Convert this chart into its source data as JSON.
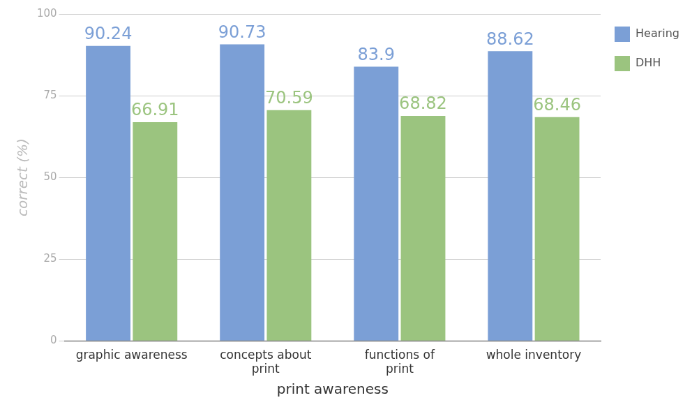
{
  "chart_data": {
    "type": "bar",
    "xlabel": "print awareness",
    "ylabel": "correct (%)",
    "categories": [
      "graphic awareness",
      "concepts about print",
      "functions of print",
      "whole inventory"
    ],
    "series": [
      {
        "name": "Hearing",
        "color": "#7b9fd6",
        "values": [
          90.24,
          90.73,
          83.9,
          88.62
        ]
      },
      {
        "name": "DHH",
        "color": "#9bc47f",
        "values": [
          66.91,
          70.59,
          68.82,
          68.46
        ]
      }
    ],
    "ylim": [
      0,
      100
    ],
    "yticks": [
      0,
      25,
      50,
      75,
      100
    ],
    "grid": "y",
    "legend": "top right",
    "data_labels": true
  }
}
